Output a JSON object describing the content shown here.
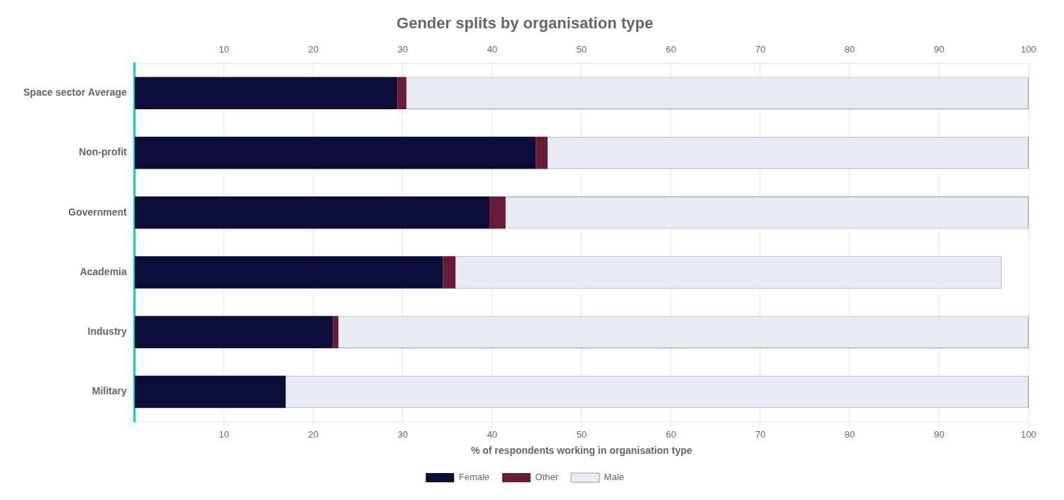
{
  "chart_data": {
    "type": "bar",
    "orientation": "horizontal",
    "stacked": true,
    "title": "Gender splits by organisation type",
    "xlabel": "% of respondents working in organisation type",
    "categories": [
      "Space sector Average",
      "Non-profit",
      "Government",
      "Academia",
      "Industry",
      "Military"
    ],
    "series": [
      {
        "name": "Female",
        "color": "#0d0d3b",
        "values": [
          29.4,
          44.9,
          39.7,
          34.5,
          22.2,
          16.9
        ]
      },
      {
        "name": "Other",
        "color": "#6b1a3a",
        "values": [
          1.0,
          1.3,
          1.8,
          1.4,
          0.6,
          0.0
        ]
      },
      {
        "name": "Male",
        "color": "#e8ecf2",
        "values": [
          69.6,
          53.8,
          58.5,
          61.1,
          77.2,
          83.1
        ]
      }
    ],
    "xlim": [
      0,
      100
    ],
    "xticks": [
      10,
      20,
      30,
      40,
      50,
      60,
      70,
      80,
      90,
      100
    ],
    "grid": true,
    "legend": "bottom"
  }
}
